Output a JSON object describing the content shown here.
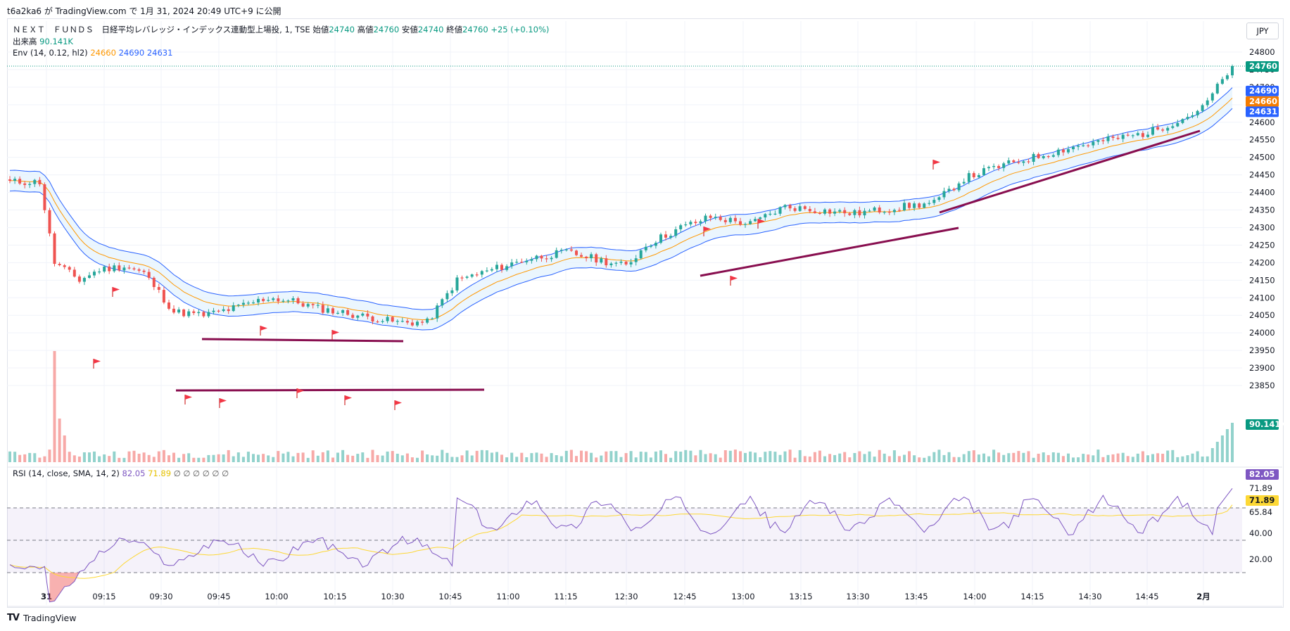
{
  "topbar": {
    "text": "t6a2ka6 が TradingView.com で 1月 31, 2024 20:49 UTC+9 に公開"
  },
  "currency": "JPY",
  "legend": {
    "symbol": "ＮＥＸＴ　ＦＵＮＤＳ　日経平均レバレッジ・インデックス連動型上場投, 1, TSE",
    "open_label": "始値",
    "open": "24740",
    "high_label": "高値",
    "high": "24760",
    "low_label": "安値",
    "low": "24740",
    "close_label": "終値",
    "close": "24760",
    "change": "+25 (+0.10%)",
    "volume_label": "出来高",
    "volume": "90.141K",
    "env_label": "Env (14, 0.12, hl2)",
    "env_basis": "24660",
    "env_upper": "24690",
    "env_lower": "24631",
    "rsi_label": "RSI (14, close, SMA, 14, 2)",
    "rsi_value": "82.05",
    "rsi_ma": "71.89",
    "rsi_extra": "∅ ∅ ∅ ∅ ∅ ∅"
  },
  "price_axis": {
    "ticks": [
      "24800",
      "24750",
      "24700",
      "24650",
      "24600",
      "24550",
      "24500",
      "24450",
      "24400",
      "24350",
      "24300",
      "24250",
      "24200",
      "24150",
      "24100",
      "24050",
      "24000",
      "23950",
      "23900",
      "23850"
    ],
    "badges": {
      "last": "24760",
      "upper": "24690",
      "basis": "24660",
      "lower": "24631",
      "volume": "90.141K"
    }
  },
  "rsi_axis": {
    "ticks": [
      "71.89",
      "65.84",
      "40.00",
      "20.00"
    ],
    "badges": {
      "rsi": "82.05",
      "ma": "71.89"
    }
  },
  "time_axis": [
    "31",
    "09:15",
    "09:30",
    "09:45",
    "10:00",
    "10:15",
    "10:30",
    "10:45",
    "11:00",
    "11:15",
    "12:30",
    "12:45",
    "13:00",
    "13:15",
    "13:30",
    "13:45",
    "14:00",
    "14:15",
    "14:30",
    "14:45",
    "2月"
  ],
  "colors": {
    "up": "#26a69a",
    "down": "#ef5350",
    "basis": "#ff9800",
    "band": "#2962ff",
    "band_fill": "#e3f2fd",
    "rsi": "#7e57c2",
    "rsi_ma": "#fdd835",
    "trend": "#880e4f",
    "flag": "#f23645",
    "last_badge": "#089981"
  },
  "chart_data": {
    "type": "line",
    "title": "ＮＥＸＴ　ＦＵＮＤＳ　日経平均レバレッジ・インデックス連動型上場投, 1, TSE",
    "x": [
      "31",
      "09:15",
      "09:30",
      "09:45",
      "10:00",
      "10:15",
      "10:30",
      "10:45",
      "11:00",
      "11:15",
      "12:30",
      "12:45",
      "13:00",
      "13:15",
      "13:30",
      "13:45",
      "14:00",
      "14:15",
      "14:30",
      "14:45",
      "2月"
    ],
    "series": [
      {
        "name": "Env (14, 0.12, hl2)",
        "values": [
          24430,
          24180,
          24120,
          24050,
          24080,
          24060,
          24030,
          24150,
          24195,
          24220,
          24200,
          24310,
          24330,
          24345,
          24350,
          24400,
          24500,
          24530,
          24560,
          24600,
          24660
        ]
      }
    ],
    "ylim": [
      23850,
      24800
    ],
    "last": {
      "open": 24740,
      "high": 24760,
      "low": 24740,
      "close": 24760
    },
    "rsi": {
      "value": 82.05,
      "ma": 71.89,
      "levels": [
        70,
        50,
        30
      ],
      "ylim": [
        10,
        90
      ]
    }
  }
}
